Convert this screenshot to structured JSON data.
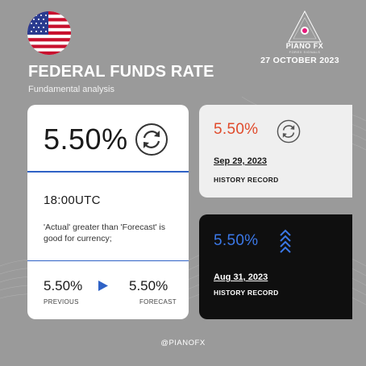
{
  "header": {
    "title": "FEDERAL FUNDS RATE",
    "subtitle": "Fundamental analysis",
    "brand_name": "PIANO FX",
    "brand_tagline": "FOREX SIGNALS",
    "date": "27 OCTOBER 2023",
    "flag_icon": "us-flag-icon"
  },
  "main_card": {
    "actual": "5.50%",
    "status_icon": "refresh-circle-icon",
    "time": "18:00UTC",
    "description": "'Actual' greater than 'Forecast' is good for currency;",
    "previous_value": "5.50%",
    "previous_label": "PREVIOUS",
    "forecast_value": "5.50%",
    "forecast_label": "FORECAST",
    "accent": "#2f62c6"
  },
  "history": [
    {
      "value": "5.50%",
      "value_color": "#e04b2c",
      "icon": "refresh-circle-icon",
      "date": "Sep 29, 2023",
      "label": "HISTORY RECORD"
    },
    {
      "value": "5.50%",
      "value_color": "#3b78e7",
      "icon": "chevrons-up-icon",
      "date": "Aug 31, 2023",
      "label": "HISTORY RECORD"
    }
  ],
  "footer": {
    "handle": "@PIANOFX"
  }
}
